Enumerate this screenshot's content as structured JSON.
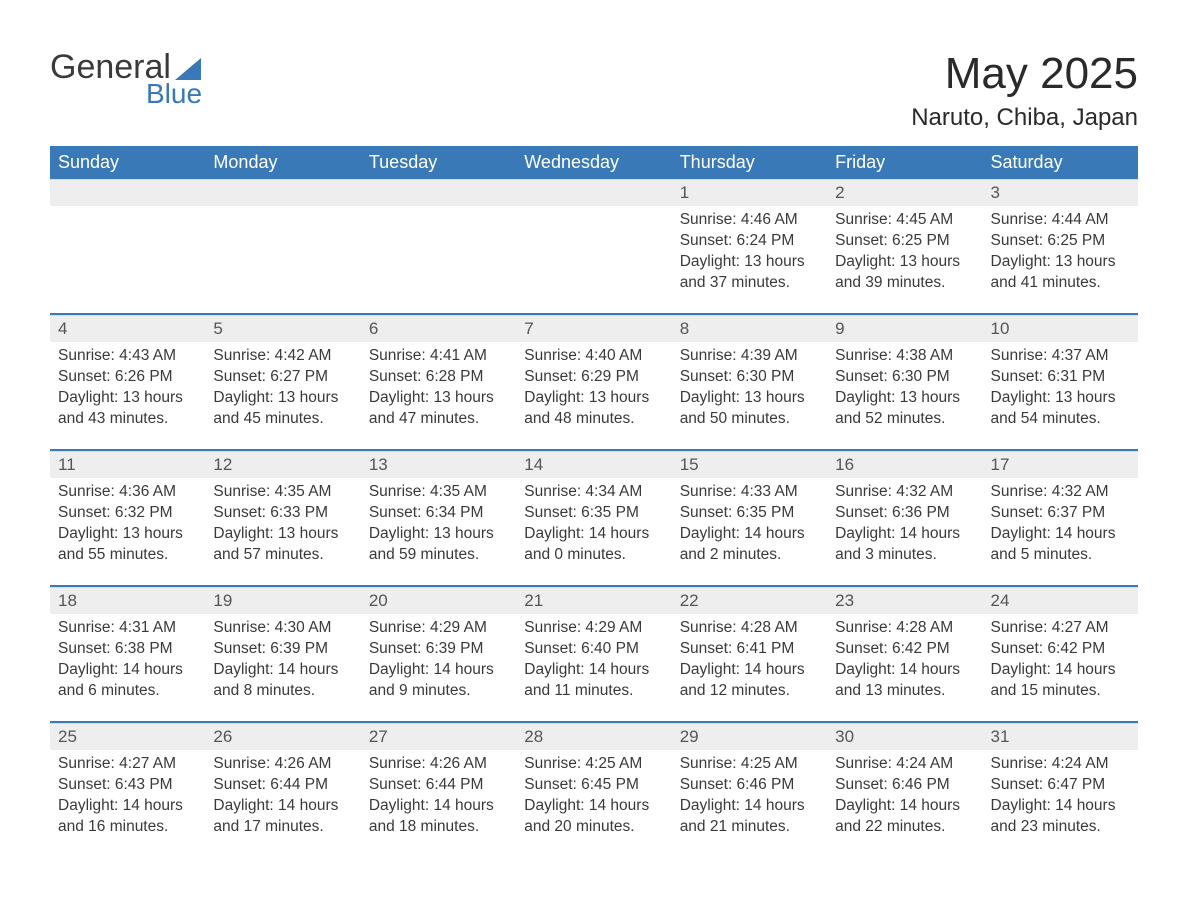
{
  "logo": {
    "word1": "General",
    "word2": "Blue",
    "sail_color": "#3a79b7",
    "text_color": "#3a3a3a"
  },
  "title": "May 2025",
  "location": "Naruto, Chiba, Japan",
  "colors": {
    "header_bg": "#3a79b7",
    "header_fg": "#ffffff",
    "daynum_bg": "#eeeeee",
    "body_fg": "#3a3a3a",
    "page_bg": "#ffffff"
  },
  "day_headers": [
    "Sunday",
    "Monday",
    "Tuesday",
    "Wednesday",
    "Thursday",
    "Friday",
    "Saturday"
  ],
  "weeks": [
    [
      null,
      null,
      null,
      null,
      {
        "n": "1",
        "sunrise": "Sunrise: 4:46 AM",
        "sunset": "Sunset: 6:24 PM",
        "daylight": "Daylight: 13 hours and 37 minutes."
      },
      {
        "n": "2",
        "sunrise": "Sunrise: 4:45 AM",
        "sunset": "Sunset: 6:25 PM",
        "daylight": "Daylight: 13 hours and 39 minutes."
      },
      {
        "n": "3",
        "sunrise": "Sunrise: 4:44 AM",
        "sunset": "Sunset: 6:25 PM",
        "daylight": "Daylight: 13 hours and 41 minutes."
      }
    ],
    [
      {
        "n": "4",
        "sunrise": "Sunrise: 4:43 AM",
        "sunset": "Sunset: 6:26 PM",
        "daylight": "Daylight: 13 hours and 43 minutes."
      },
      {
        "n": "5",
        "sunrise": "Sunrise: 4:42 AM",
        "sunset": "Sunset: 6:27 PM",
        "daylight": "Daylight: 13 hours and 45 minutes."
      },
      {
        "n": "6",
        "sunrise": "Sunrise: 4:41 AM",
        "sunset": "Sunset: 6:28 PM",
        "daylight": "Daylight: 13 hours and 47 minutes."
      },
      {
        "n": "7",
        "sunrise": "Sunrise: 4:40 AM",
        "sunset": "Sunset: 6:29 PM",
        "daylight": "Daylight: 13 hours and 48 minutes."
      },
      {
        "n": "8",
        "sunrise": "Sunrise: 4:39 AM",
        "sunset": "Sunset: 6:30 PM",
        "daylight": "Daylight: 13 hours and 50 minutes."
      },
      {
        "n": "9",
        "sunrise": "Sunrise: 4:38 AM",
        "sunset": "Sunset: 6:30 PM",
        "daylight": "Daylight: 13 hours and 52 minutes."
      },
      {
        "n": "10",
        "sunrise": "Sunrise: 4:37 AM",
        "sunset": "Sunset: 6:31 PM",
        "daylight": "Daylight: 13 hours and 54 minutes."
      }
    ],
    [
      {
        "n": "11",
        "sunrise": "Sunrise: 4:36 AM",
        "sunset": "Sunset: 6:32 PM",
        "daylight": "Daylight: 13 hours and 55 minutes."
      },
      {
        "n": "12",
        "sunrise": "Sunrise: 4:35 AM",
        "sunset": "Sunset: 6:33 PM",
        "daylight": "Daylight: 13 hours and 57 minutes."
      },
      {
        "n": "13",
        "sunrise": "Sunrise: 4:35 AM",
        "sunset": "Sunset: 6:34 PM",
        "daylight": "Daylight: 13 hours and 59 minutes."
      },
      {
        "n": "14",
        "sunrise": "Sunrise: 4:34 AM",
        "sunset": "Sunset: 6:35 PM",
        "daylight": "Daylight: 14 hours and 0 minutes."
      },
      {
        "n": "15",
        "sunrise": "Sunrise: 4:33 AM",
        "sunset": "Sunset: 6:35 PM",
        "daylight": "Daylight: 14 hours and 2 minutes."
      },
      {
        "n": "16",
        "sunrise": "Sunrise: 4:32 AM",
        "sunset": "Sunset: 6:36 PM",
        "daylight": "Daylight: 14 hours and 3 minutes."
      },
      {
        "n": "17",
        "sunrise": "Sunrise: 4:32 AM",
        "sunset": "Sunset: 6:37 PM",
        "daylight": "Daylight: 14 hours and 5 minutes."
      }
    ],
    [
      {
        "n": "18",
        "sunrise": "Sunrise: 4:31 AM",
        "sunset": "Sunset: 6:38 PM",
        "daylight": "Daylight: 14 hours and 6 minutes."
      },
      {
        "n": "19",
        "sunrise": "Sunrise: 4:30 AM",
        "sunset": "Sunset: 6:39 PM",
        "daylight": "Daylight: 14 hours and 8 minutes."
      },
      {
        "n": "20",
        "sunrise": "Sunrise: 4:29 AM",
        "sunset": "Sunset: 6:39 PM",
        "daylight": "Daylight: 14 hours and 9 minutes."
      },
      {
        "n": "21",
        "sunrise": "Sunrise: 4:29 AM",
        "sunset": "Sunset: 6:40 PM",
        "daylight": "Daylight: 14 hours and 11 minutes."
      },
      {
        "n": "22",
        "sunrise": "Sunrise: 4:28 AM",
        "sunset": "Sunset: 6:41 PM",
        "daylight": "Daylight: 14 hours and 12 minutes."
      },
      {
        "n": "23",
        "sunrise": "Sunrise: 4:28 AM",
        "sunset": "Sunset: 6:42 PM",
        "daylight": "Daylight: 14 hours and 13 minutes."
      },
      {
        "n": "24",
        "sunrise": "Sunrise: 4:27 AM",
        "sunset": "Sunset: 6:42 PM",
        "daylight": "Daylight: 14 hours and 15 minutes."
      }
    ],
    [
      {
        "n": "25",
        "sunrise": "Sunrise: 4:27 AM",
        "sunset": "Sunset: 6:43 PM",
        "daylight": "Daylight: 14 hours and 16 minutes."
      },
      {
        "n": "26",
        "sunrise": "Sunrise: 4:26 AM",
        "sunset": "Sunset: 6:44 PM",
        "daylight": "Daylight: 14 hours and 17 minutes."
      },
      {
        "n": "27",
        "sunrise": "Sunrise: 4:26 AM",
        "sunset": "Sunset: 6:44 PM",
        "daylight": "Daylight: 14 hours and 18 minutes."
      },
      {
        "n": "28",
        "sunrise": "Sunrise: 4:25 AM",
        "sunset": "Sunset: 6:45 PM",
        "daylight": "Daylight: 14 hours and 20 minutes."
      },
      {
        "n": "29",
        "sunrise": "Sunrise: 4:25 AM",
        "sunset": "Sunset: 6:46 PM",
        "daylight": "Daylight: 14 hours and 21 minutes."
      },
      {
        "n": "30",
        "sunrise": "Sunrise: 4:24 AM",
        "sunset": "Sunset: 6:46 PM",
        "daylight": "Daylight: 14 hours and 22 minutes."
      },
      {
        "n": "31",
        "sunrise": "Sunrise: 4:24 AM",
        "sunset": "Sunset: 6:47 PM",
        "daylight": "Daylight: 14 hours and 23 minutes."
      }
    ]
  ]
}
